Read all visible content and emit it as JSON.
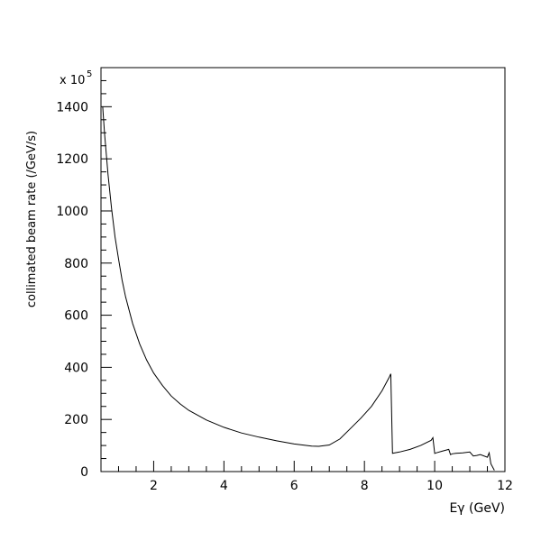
{
  "chart_data": {
    "type": "line",
    "title": "",
    "xlabel": "Eγ (GeV)",
    "ylabel": "collimated beam rate (/GeV/s)",
    "y_multiplier_label": "x 10",
    "y_multiplier_exponent": "5",
    "xlim": [
      0.5,
      12
    ],
    "ylim": [
      0,
      1550
    ],
    "x_ticks": [
      2,
      4,
      6,
      8,
      10,
      12
    ],
    "y_ticks": [
      0,
      200,
      400,
      600,
      800,
      1000,
      1200,
      1400
    ],
    "grid": false,
    "series": [
      {
        "x": [
          0.55,
          0.6,
          0.7,
          0.8,
          0.9,
          1.0,
          1.1,
          1.2,
          1.4,
          1.6,
          1.8,
          2.0,
          2.25,
          2.5,
          2.75,
          3.0,
          3.5,
          4.0,
          4.5,
          5.0,
          5.5,
          6.0,
          6.5,
          6.7,
          7.0,
          7.3,
          7.6,
          7.9,
          8.2,
          8.5,
          8.7,
          8.75,
          8.8,
          9.0,
          9.3,
          9.6,
          9.9,
          9.95,
          10.0,
          10.05,
          10.2,
          10.4,
          10.45,
          10.5,
          10.6,
          10.8,
          11.0,
          11.1,
          11.2,
          11.3,
          11.5,
          11.55,
          11.6,
          11.7
        ],
        "y": [
          1400,
          1300,
          1140,
          1010,
          900,
          815,
          735,
          670,
          568,
          490,
          428,
          378,
          330,
          290,
          260,
          235,
          198,
          170,
          148,
          132,
          118,
          106,
          98,
          97,
          102,
          125,
          165,
          205,
          250,
          310,
          360,
          375,
          70,
          75,
          85,
          100,
          120,
          130,
          70,
          72,
          78,
          85,
          65,
          68,
          70,
          72,
          75,
          60,
          62,
          65,
          55,
          72,
          30,
          5
        ]
      }
    ]
  }
}
